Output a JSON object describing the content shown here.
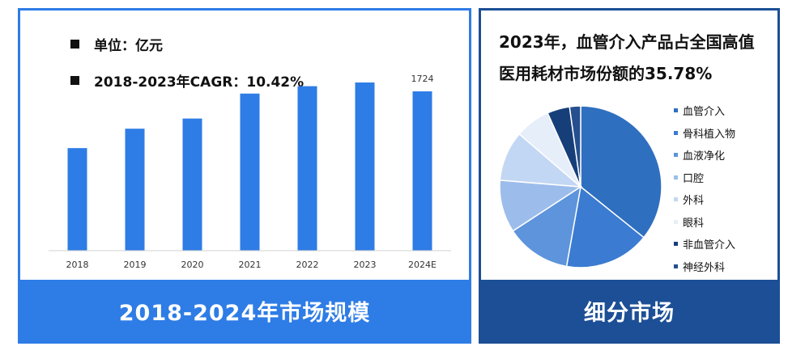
{
  "left_panel": {
    "unit_text": "单位：亿元",
    "cagr_text": "2018-2023年CAGR：10.42%",
    "footer": "2018-2024年市场规模"
  },
  "right_panel": {
    "title": "2023年，血管介入产品占全国高值医用耗材市场份额的35.78%",
    "footer": "细分市场"
  },
  "colors": {
    "bar": "#2e7ce6",
    "left_frame": "#2e7ce6",
    "right_frame": "#1c4f96"
  },
  "chart_data": [
    {
      "type": "bar",
      "categories": [
        "2018",
        "2019",
        "2020",
        "2021",
        "2022",
        "2023",
        "2024E"
      ],
      "values": [
        1110,
        1320,
        1430,
        1700,
        1780,
        1820,
        1724
      ],
      "data_labels": [
        "",
        "",
        "",
        "",
        "",
        "",
        "1724"
      ],
      "title": "2018-2024年市场规模",
      "unit": "亿元",
      "annotation": "2018-2023年CAGR：10.42%",
      "xlabel": "",
      "ylabel": "",
      "grid": false
    },
    {
      "type": "pie",
      "title": "细分市场",
      "labels": [
        "血管介入",
        "骨科植入物",
        "血液净化",
        "口腔",
        "外科",
        "眼科",
        "非血管介入",
        "神经外科"
      ],
      "values": [
        35.78,
        17.0,
        13.0,
        10.5,
        10.0,
        7.0,
        4.5,
        2.2
      ],
      "colors": [
        "#2f6fc0",
        "#3b7bd1",
        "#5d94db",
        "#9cbdeb",
        "#c2d7f3",
        "#e6eef9",
        "#163f7a",
        "#254f8f"
      ],
      "legend_position": "right"
    }
  ]
}
